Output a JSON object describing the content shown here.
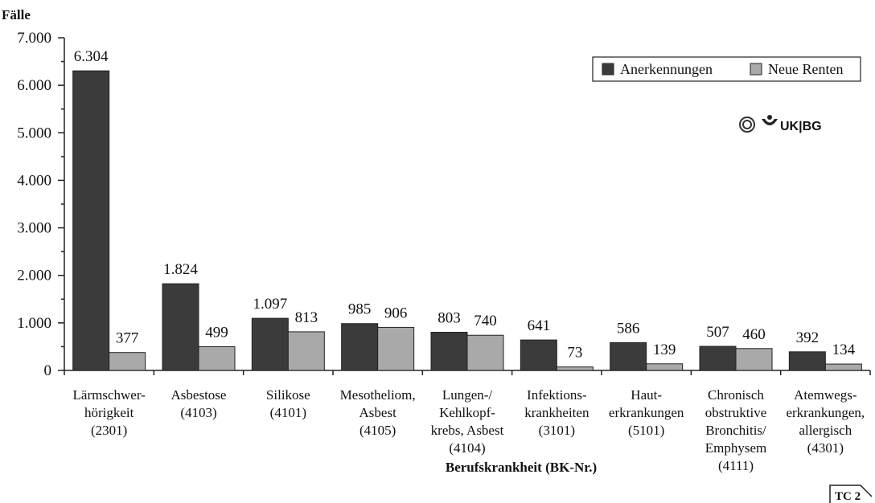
{
  "chart_data": {
    "type": "bar",
    "y_label": "Fälle",
    "x_label": "Berufskrankheit (BK-Nr.)",
    "logo_text": "UK|BG",
    "tag": "TC 2",
    "categories": [
      "Lärmschwer-\nhörigkeit\n(2301)",
      "Asbestose\n(4103)",
      "Silikose\n(4101)",
      "Mesotheliom,\nAsbest\n(4105)",
      "Lungen-/\nKehlkopf-\nkrebs, Asbest\n(4104)",
      "Infektions-\nkrankheiten\n(3101)",
      "Haut-\nerkrankungen\n(5101)",
      "Chronisch\nobstruktive\nBronchitis/\nEmphysem\n(4111)",
      "Atemwegs-\nerkrankungen,\nallergisch\n(4301)"
    ],
    "series": [
      {
        "name": "Anerkennungen",
        "color": "#3b3b3b",
        "values": [
          6304,
          1824,
          1097,
          985,
          803,
          641,
          586,
          507,
          392
        ],
        "value_labels": [
          "6.304",
          "1.824",
          "1.097",
          "985",
          "803",
          "641",
          "586",
          "507",
          "392"
        ]
      },
      {
        "name": "Neue Renten",
        "color": "#a9a9a9",
        "values": [
          377,
          499,
          813,
          906,
          740,
          73,
          139,
          460,
          134
        ]
      }
    ],
    "ylim": [
      0,
      7000
    ],
    "yticks": [
      0,
      {
        "value": 1000,
        "label": "1.000"
      },
      {
        "value": 2000,
        "label": "2.000"
      },
      {
        "value": 3000,
        "label": "3.000"
      },
      {
        "value": 4000,
        "label": "4.000"
      },
      {
        "value": 5000,
        "label": "5.000"
      },
      {
        "value": 6000,
        "label": "6.000"
      },
      {
        "value": 7000,
        "label": "7.000"
      }
    ],
    "grid": false,
    "legend": "upper right"
  }
}
